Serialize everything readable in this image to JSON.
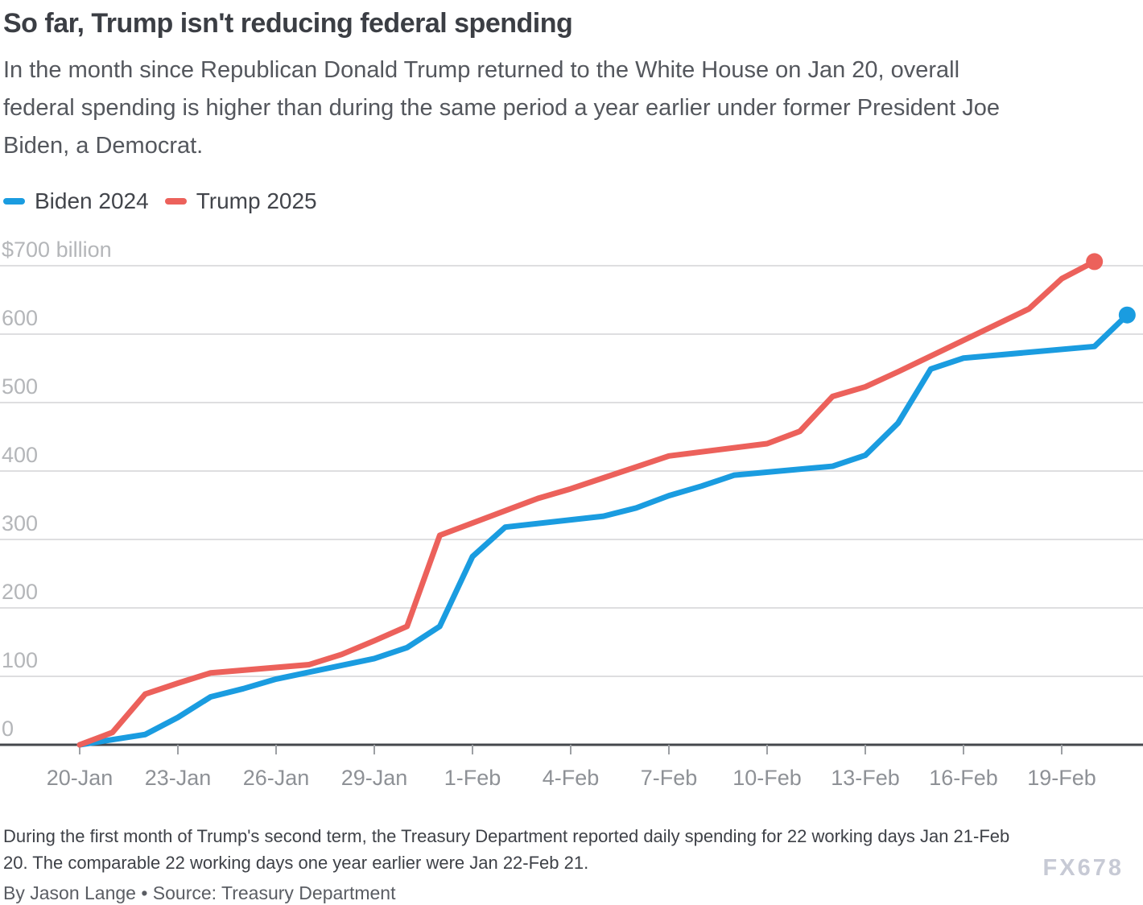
{
  "header": {
    "title": "So far, Trump isn't reducing federal spending",
    "subtitle_lines": [
      "In the month since Republican Donald Trump returned to the White House on Jan 20, overall",
      "federal spending is higher than during the same period a year earlier under former President Joe",
      "Biden, a Democrat."
    ]
  },
  "legend": [
    {
      "label": "Biden 2024",
      "color": "#1a9ce0"
    },
    {
      "label": "Trump 2025",
      "color": "#ec615b"
    }
  ],
  "footer": {
    "note_lines": [
      "During the first month of Trump's second term, the Treasury Department reported daily spending for 22 working days Jan 21-Feb",
      "20. The comparable 22 working days one year earlier were Jan 22-Feb 21."
    ],
    "byline": "By Jason Lange • Source: Treasury Department",
    "watermark": "FX678"
  },
  "chart_data": {
    "type": "line",
    "title": "So far, Trump isn't reducing federal spending",
    "unit": "billions of US dollars, cumulative",
    "grid": "horizontal",
    "legend_position": "top-left",
    "ylim": [
      0,
      730
    ],
    "y_axis": {
      "ticks": [
        {
          "value": 700,
          "label": "$700 billion"
        },
        {
          "value": 600,
          "label": "600"
        },
        {
          "value": 500,
          "label": "500"
        },
        {
          "value": 400,
          "label": "400"
        },
        {
          "value": 300,
          "label": "300"
        },
        {
          "value": 200,
          "label": "200"
        },
        {
          "value": 100,
          "label": "100"
        },
        {
          "value": 0,
          "label": "0"
        }
      ]
    },
    "x_axis": {
      "ticks": [
        "20-Jan",
        "23-Jan",
        "26-Jan",
        "29-Jan",
        "1-Feb",
        "4-Feb",
        "7-Feb",
        "10-Feb",
        "13-Feb",
        "16-Feb",
        "19-Feb"
      ]
    },
    "series": [
      {
        "name": "Biden 2024",
        "color": "#1a9ce0",
        "end_dot": true,
        "dates": [
          "20-Jan",
          "22-Jan",
          "23-Jan",
          "24-Jan",
          "25-Jan",
          "26-Jan",
          "29-Jan",
          "30-Jan",
          "31-Jan",
          "1-Feb",
          "2-Feb",
          "5-Feb",
          "6-Feb",
          "7-Feb",
          "8-Feb",
          "9-Feb",
          "12-Feb",
          "13-Feb",
          "14-Feb",
          "15-Feb",
          "16-Feb",
          "20-Feb",
          "21-Feb"
        ],
        "values": [
          0,
          15,
          40,
          70,
          82,
          96,
          126,
          142,
          173,
          275,
          318,
          334,
          346,
          364,
          378,
          394,
          407,
          423,
          470,
          549,
          565,
          582,
          628
        ]
      },
      {
        "name": "Trump 2025",
        "color": "#ec615b",
        "end_dot": true,
        "dates": [
          "20-Jan",
          "21-Jan",
          "22-Jan",
          "23-Jan",
          "24-Jan",
          "27-Jan",
          "28-Jan",
          "29-Jan",
          "30-Jan",
          "31-Jan",
          "3-Feb",
          "4-Feb",
          "5-Feb",
          "6-Feb",
          "7-Feb",
          "10-Feb",
          "11-Feb",
          "12-Feb",
          "13-Feb",
          "14-Feb",
          "18-Feb",
          "19-Feb",
          "20-Feb"
        ],
        "values": [
          0,
          18,
          74,
          90,
          105,
          117,
          132,
          152,
          173,
          306,
          360,
          374,
          390,
          406,
          422,
          440,
          458,
          509,
          523,
          545,
          637,
          681,
          706
        ]
      }
    ]
  }
}
